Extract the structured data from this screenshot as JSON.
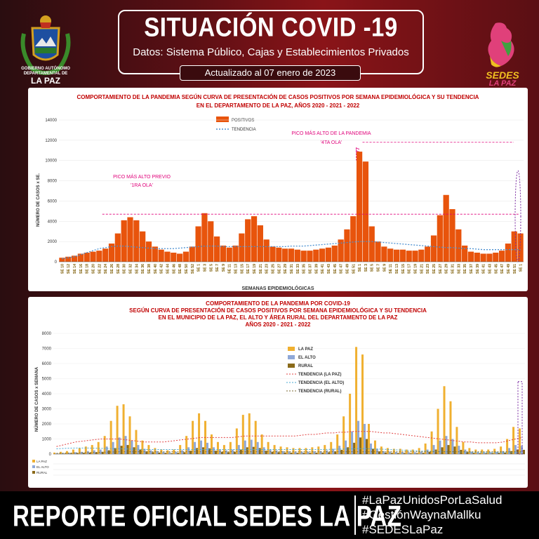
{
  "header": {
    "crest_caption_small": "GOBIERNO AUTÓNOMO DEPARTAMENTAL DE",
    "crest_caption_big": "LA PAZ",
    "title": "SITUACIÓN COVID -19",
    "subtitle": "Datos: Sistema Público, Cajas y Establecimientos Privados",
    "updated": "Actualizado  al  07  enero de 2023",
    "logo_text_1": "SEDES",
    "logo_text_2": "LA PAZ"
  },
  "colors": {
    "accent": "#e8540c",
    "trend": "#4a8fd0",
    "annotation": "#e0007a",
    "lapaz": "#f0b030",
    "elalto": "#8fa8d8",
    "rural": "#8a6a1a"
  },
  "chart1": {
    "title_line1": "COMPORTAMIENTO DE LA PANDEMIA SEGÚN CURVA DE PRESENTACIÓN DE CASOS POSITIVOS POR SEMANA EPIDEMIOLÓGICA Y SU TENDENCIA",
    "title_line2": "EN EL DEPARTAMENTO DE LA PAZ, AÑOS 2020 - 2021 - 2022",
    "annotation_1_line1": "PICO MÁS ALTO PREVIO",
    "annotation_1_line2": "'1RA OLA'",
    "annotation_2_line1": "PICO MÁS ALTO DE LA PANDEMIA",
    "annotation_2_line2": "'4TA OLA'",
    "peak_label": "10877"
  },
  "chart2": {
    "title_line1": "COMPORTAMIENTO DE LA PANDEMIA POR COVID-19",
    "title_line2": "SEGÚN CURVA DE PRESENTACIÓN DE CASOS POSITIVOS POR SEMANA EPIDEMIOLÓGICA Y SU TENDENCIA",
    "title_line3": "EN EL  MUNICIPIO DE LA PAZ, EL ALTO Y ÁREA RURAL DEL DEPARTAMENTO DE LA PAZ",
    "title_line4": "AÑOS 2020 - 2021 - 2022",
    "table_row_labels": [
      "LA PAZ",
      "EL ALTO",
      "RURAL"
    ]
  },
  "chart_data": [
    {
      "type": "bar",
      "ylabel": "NÚMERO DE CASOS x SE.",
      "xlabel": "SEMANAS EPIDEMIOLÓGICAS",
      "ylim": [
        0,
        14000
      ],
      "yticks": [
        0,
        2000,
        4000,
        6000,
        8000,
        10000,
        12000,
        14000
      ],
      "xtick_labels": [
        "SE 10",
        "SE 12",
        "SE 14",
        "SE 16",
        "SE 18",
        "SE 20",
        "SE 22",
        "SE 24",
        "SE 26",
        "SE 28",
        "SE 30",
        "SE 32",
        "SE 34",
        "SE 36",
        "SE 38",
        "SE 40",
        "SE 42",
        "SE 44",
        "SE 46",
        "SE 48",
        "SE 50",
        "SE 52",
        "SE 1",
        "SE 3",
        "SE 5",
        "SE 7",
        "SE 9",
        "SE 11",
        "SE 13",
        "SE 15",
        "SE 17",
        "SE 19",
        "SE 21",
        "SE 23",
        "SE 25",
        "SE 27",
        "SE 29",
        "SE 31",
        "SE 33",
        "SE 35",
        "SE 37",
        "SE 39",
        "SE 41",
        "SE 43",
        "SE 45",
        "SE 47",
        "SE 49",
        "SE 51",
        "SE 1",
        "SE 3",
        "SE 5",
        "SE 7",
        "SE 9",
        "SE 11",
        "SE 13",
        "SE 15",
        "SE 17",
        "SE 19",
        "SE 21",
        "SE 23",
        "SE 25",
        "SE 27",
        "SE 29",
        "SE 31",
        "SE 33",
        "SE 35",
        "SE 37",
        "SE 39",
        "SE 41",
        "SE 43",
        "SE 45",
        "SE 47",
        "SE 49",
        "SE 51",
        "SE 1"
      ],
      "series": [
        {
          "name": "POSITIVOS",
          "values": [
            400,
            500,
            600,
            800,
            900,
            1000,
            1100,
            1300,
            1800,
            2800,
            4100,
            4400,
            4100,
            3000,
            2000,
            1500,
            1200,
            1000,
            900,
            800,
            1000,
            1500,
            3500,
            4800,
            4000,
            2500,
            1600,
            1400,
            1600,
            2800,
            4200,
            4500,
            3600,
            2200,
            1500,
            1400,
            1300,
            1300,
            1200,
            1100,
            1100,
            1200,
            1300,
            1400,
            1600,
            2200,
            3200,
            4500,
            10877,
            9900,
            3500,
            2000,
            1500,
            1300,
            1200,
            1200,
            1100,
            1100,
            1200,
            1500,
            2600,
            4600,
            6600,
            5200,
            3200,
            1600,
            1000,
            900,
            800,
            800,
            900,
            1100,
            1800,
            3000,
            2800
          ]
        },
        {
          "name": "TENDENCIA",
          "values": [
            300,
            400,
            500,
            700,
            900,
            1100,
            1300,
            1400,
            1500,
            1550,
            1550,
            1500,
            1450,
            1400,
            1350,
            1300,
            1300,
            1300,
            1300,
            1350,
            1400,
            1450,
            1500,
            1550,
            1550,
            1550,
            1500,
            1500,
            1500,
            1500,
            1500,
            1500,
            1500,
            1500,
            1500,
            1500,
            1500,
            1550,
            1550,
            1550,
            1600,
            1650,
            1700,
            1750,
            1800,
            1850,
            1900,
            1950,
            2000,
            2000,
            2000,
            1950,
            1900,
            1850,
            1800,
            1750,
            1700,
            1650,
            1600,
            1550,
            1500,
            1450,
            1400,
            1400,
            1350,
            1300,
            1300,
            1250,
            1200,
            1200,
            1200,
            1200,
            1200,
            1200,
            1200
          ]
        }
      ],
      "reference_line_value": 4700,
      "legend": "top-center"
    },
    {
      "type": "bar",
      "ylabel": "NÚMERO DE CASOS x SEMANA",
      "ylim": [
        0,
        8000
      ],
      "yticks": [
        0,
        1000,
        2000,
        3000,
        4000,
        5000,
        6000,
        7000,
        8000
      ],
      "series": [
        {
          "name": "LA PAZ",
          "values": [
            100,
            150,
            200,
            300,
            400,
            500,
            600,
            800,
            1200,
            2200,
            3200,
            3300,
            2500,
            1600,
            900,
            600,
            400,
            300,
            250,
            300,
            600,
            1200,
            2200,
            2700,
            2200,
            1300,
            800,
            600,
            800,
            1700,
            2600,
            2700,
            2200,
            1300,
            800,
            600,
            500,
            450,
            400,
            400,
            400,
            450,
            500,
            600,
            800,
            1300,
            2500,
            4000,
            7100,
            6600,
            2000,
            900,
            500,
            400,
            350,
            350,
            300,
            300,
            400,
            700,
            1500,
            3000,
            4500,
            3500,
            1800,
            800,
            400,
            300,
            300,
            300,
            350,
            500,
            1000,
            1800,
            1700
          ]
        },
        {
          "name": "EL ALTO",
          "values": [
            40,
            60,
            80,
            120,
            150,
            200,
            250,
            300,
            500,
            800,
            1100,
            1200,
            900,
            600,
            350,
            250,
            200,
            150,
            120,
            150,
            250,
            450,
            800,
            900,
            750,
            450,
            300,
            250,
            300,
            600,
            900,
            950,
            800,
            450,
            300,
            250,
            200,
            180,
            160,
            160,
            160,
            180,
            200,
            250,
            350,
            550,
            900,
            1500,
            2200,
            2000,
            700,
            350,
            200,
            160,
            140,
            140,
            120,
            120,
            160,
            300,
            600,
            900,
            1200,
            1000,
            550,
            300,
            160,
            120,
            120,
            120,
            150,
            200,
            400,
            600,
            550
          ]
        },
        {
          "name": "RURAL",
          "values": [
            20,
            30,
            40,
            60,
            80,
            100,
            120,
            150,
            250,
            400,
            550,
            600,
            450,
            300,
            180,
            120,
            100,
            80,
            60,
            80,
            120,
            220,
            400,
            450,
            380,
            220,
            150,
            120,
            150,
            300,
            450,
            480,
            400,
            220,
            150,
            120,
            100,
            90,
            80,
            80,
            80,
            90,
            100,
            120,
            180,
            280,
            450,
            750,
            1100,
            1000,
            350,
            180,
            100,
            80,
            70,
            70,
            60,
            60,
            80,
            150,
            300,
            450,
            600,
            500,
            280,
            150,
            80,
            60,
            60,
            60,
            80,
            100,
            200,
            300,
            280
          ]
        },
        {
          "name": "TENDENCIA (LA PAZ)",
          "values": [
            500,
            600,
            700,
            800,
            850,
            900,
            950,
            1000,
            1000,
            1000,
            1000,
            950,
            900,
            850,
            800,
            800,
            800,
            800,
            850,
            900,
            950,
            1000,
            1050,
            1100,
            1100,
            1100,
            1100,
            1100,
            1100,
            1150,
            1200,
            1200,
            1200,
            1200,
            1200,
            1200,
            1200,
            1200,
            1200,
            1250,
            1300,
            1300,
            1350,
            1400,
            1400,
            1450,
            1450,
            1500,
            1500,
            1500,
            1500,
            1450,
            1400,
            1400,
            1350,
            1300,
            1250,
            1200,
            1150,
            1100,
            1050,
            1000,
            950,
            900,
            850,
            800,
            800,
            750,
            750,
            750,
            750,
            800,
            900,
            1000,
            1100
          ]
        },
        {
          "name": "TENDENCIA (EL ALTO)",
          "values": [
            350,
            370,
            390,
            400,
            400,
            400,
            390,
            380,
            370,
            360,
            350,
            340,
            330,
            320,
            310,
            300,
            300,
            300,
            300,
            300,
            300,
            300,
            300,
            300,
            300,
            300,
            300,
            300,
            300,
            300,
            300,
            300,
            300,
            300,
            300,
            300,
            300,
            300,
            300,
            300,
            300,
            300,
            300,
            310,
            320,
            330,
            340,
            350,
            360,
            360,
            350,
            340,
            320,
            300,
            280,
            260,
            240,
            220,
            200,
            190,
            180,
            170,
            160,
            150,
            140,
            130,
            120,
            110,
            100,
            100,
            100,
            100,
            100,
            100,
            100
          ]
        },
        {
          "name": "TENDENCIA (RURAL)",
          "values": [
            50,
            60,
            70,
            80,
            90,
            100,
            110,
            120,
            130,
            140,
            150,
            150,
            150,
            150,
            150,
            150,
            150,
            150,
            150,
            150,
            150,
            150,
            150,
            150,
            150,
            150,
            150,
            150,
            150,
            150,
            150,
            150,
            150,
            150,
            150,
            150,
            150,
            150,
            150,
            150,
            150,
            150,
            150,
            150,
            150,
            150,
            150,
            150,
            150,
            150,
            150,
            150,
            150,
            150,
            150,
            150,
            150,
            150,
            150,
            150,
            150,
            150,
            150,
            150,
            150,
            150,
            150,
            150,
            150,
            150,
            150,
            150,
            150,
            150,
            150
          ]
        }
      ],
      "legend": "center-right"
    }
  ],
  "footer": {
    "main": "REPORTE OFICIAL SEDES LA PAZ",
    "hashtags": [
      "#LaPazUnidosPorLaSalud",
      "#GestiónWaynaMallku",
      "#SEDESLaPaz"
    ]
  }
}
